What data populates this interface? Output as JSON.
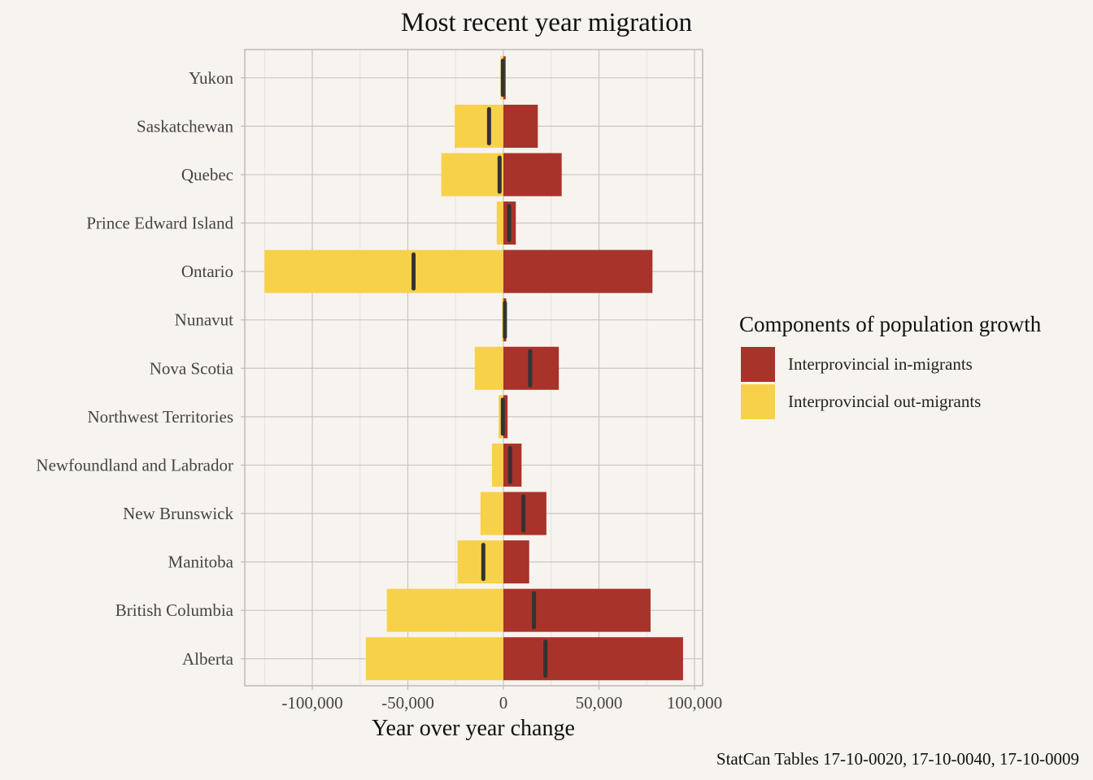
{
  "chart_data": {
    "type": "bar",
    "title": "Most recent year migration",
    "xlabel": "Year over year change",
    "ylabel": "",
    "caption": "StatCan Tables 17-10-0020, 17-10-0040, 17-10-0009",
    "xlim": [
      -125000,
      95000
    ],
    "xticks": [
      -100000,
      -50000,
      0,
      50000,
      100000
    ],
    "xtick_labels": [
      "-100,000",
      "-50,000",
      "0",
      "50,000",
      "100,000"
    ],
    "grid": true,
    "legend": {
      "title": "Components of population growth",
      "placement": "right"
    },
    "categories": [
      "Yukon",
      "Saskatchewan",
      "Quebec",
      "Prince Edward Island",
      "Ontario",
      "Nunavut",
      "Nova Scotia",
      "Northwest Territories",
      "Newfoundland and Labrador",
      "New Brunswick",
      "Manitoba",
      "British Columbia",
      "Alberta"
    ],
    "series": [
      {
        "name": "Interprovincial in-migrants",
        "color": "#a8332a",
        "values": [
          1200,
          18000,
          30500,
          6500,
          78000,
          1500,
          29000,
          2200,
          9500,
          22500,
          13500,
          77000,
          94000
        ]
      },
      {
        "name": "Interprovincial out-migrants",
        "color": "#f8d14b",
        "values": [
          -1500,
          -25500,
          -32500,
          -3500,
          -125000,
          -700,
          -15000,
          -2500,
          -6000,
          -12000,
          -24000,
          -61000,
          -72000
        ]
      }
    ],
    "net": {
      "color": "#333333",
      "values": [
        -300,
        -7500,
        -2000,
        3000,
        -47000,
        800,
        14000,
        -300,
        3500,
        10500,
        -10500,
        16000,
        22000
      ]
    }
  }
}
